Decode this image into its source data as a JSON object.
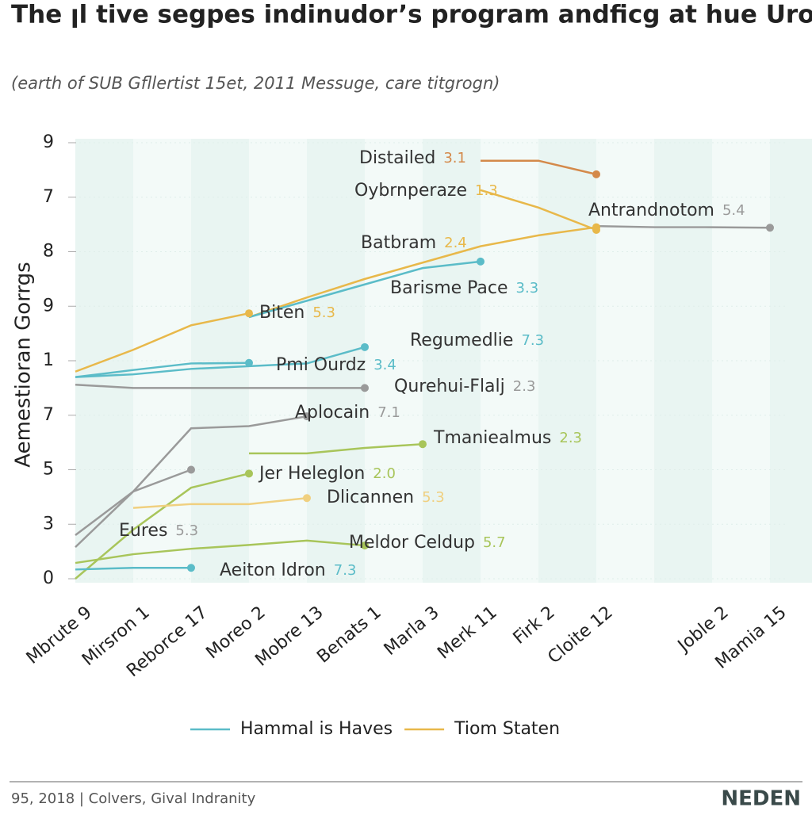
{
  "chart_data": {
    "type": "line",
    "title": "The ꞁl tive segpes indinudor’s program andficg at hue Urogration",
    "subtitle": "(earth of SUB Gfllertist 15et, 2011 Messuge, care titgrogn)",
    "y_label": "Aemestioran Gorrgs",
    "categories": [
      "Mbrute 9",
      "Mirsron 1",
      "Reborce 17",
      "Moreo 2",
      "Mobre 13",
      "Benats 1",
      "Marla 3",
      "Merk 11",
      "Firk 2",
      "Cloite 12",
      null,
      "Joble 2",
      "Mamia 15"
    ],
    "ylim": [
      0,
      8
    ],
    "yticks": [
      0,
      {
        "value": 1,
        "label": "3"
      },
      {
        "value": 2,
        "label": "5"
      },
      {
        "value": 3,
        "label": "7"
      },
      {
        "value": 4,
        "label": "1"
      },
      {
        "value": 5,
        "label": "9"
      },
      {
        "value": 6,
        "label": "8"
      },
      {
        "value": 7,
        "label": "7"
      },
      {
        "value": 8,
        "label": "9"
      }
    ],
    "grid": true,
    "legend": [
      {
        "name": "Hammal is Haves",
        "color": "#5bbcc8"
      },
      {
        "name": "Tiom Staten",
        "color": "#e8b84a"
      }
    ],
    "series": [
      {
        "label": "Distailed",
        "value_label": "3.1",
        "color": "#d4894a",
        "values": [
          null,
          null,
          null,
          null,
          null,
          null,
          null,
          7.67,
          7.67,
          7.42,
          null,
          null,
          null
        ]
      },
      {
        "label": "Oybrnperaze",
        "value_label": "1.3",
        "color": "#e8b84a",
        "values": [
          null,
          null,
          null,
          null,
          null,
          null,
          null,
          7.13,
          6.81,
          6.4,
          null,
          null,
          null
        ]
      },
      {
        "label": "Antrandnotom",
        "value_label": "5.4",
        "color": "#9a9a9a",
        "values": [
          null,
          null,
          null,
          null,
          null,
          null,
          null,
          null,
          null,
          6.47,
          6.45,
          6.45,
          6.44
        ]
      },
      {
        "label": "Batbram",
        "value_label": "2.4",
        "color": "#e8b84a",
        "values": [
          null,
          null,
          null,
          4.8,
          5.16,
          5.5,
          5.8,
          6.1,
          6.3,
          6.45,
          null,
          null,
          null
        ]
      },
      {
        "label": "Barisme Pace",
        "value_label": "3.3",
        "color": "#5bbcc8",
        "values": [
          null,
          null,
          null,
          4.8,
          5.1,
          5.4,
          5.7,
          5.82,
          null,
          null,
          null,
          null,
          null
        ]
      },
      {
        "label": "Biten",
        "value_label": "5.3",
        "color": "#e8b84a",
        "values": [
          3.8,
          4.2,
          4.65,
          4.87,
          null,
          null,
          null,
          null,
          null,
          null,
          null,
          null,
          null
        ]
      },
      {
        "label": "Regumedlie",
        "value_label": "7.3",
        "color": "#5bbcc8",
        "values": [
          3.7,
          3.75,
          3.85,
          3.9,
          3.95,
          4.25,
          null,
          null,
          null,
          null,
          null,
          null,
          null
        ]
      },
      {
        "label": "Pmi Ourdz",
        "value_label": "3.4",
        "color": "#5bbcc8",
        "values": [
          3.7,
          3.83,
          3.95,
          3.96,
          null,
          null,
          null,
          null,
          null,
          null,
          null,
          null,
          null
        ]
      },
      {
        "label": "Qurehui-Flalj",
        "value_label": "2.3",
        "color": "#9a9a9a",
        "values": [
          3.56,
          3.5,
          3.5,
          3.5,
          3.5,
          3.5,
          null,
          null,
          null,
          null,
          null,
          null,
          null
        ]
      },
      {
        "label": "Aplocain",
        "value_label": "7.1",
        "color": "#9a9a9a",
        "values": [
          0.58,
          1.6,
          2.76,
          2.8,
          2.98,
          null,
          null,
          null,
          null,
          null,
          null,
          null,
          null
        ]
      },
      {
        "label": "Tmaniealmus",
        "value_label": "2.3",
        "color": "#a8c55a",
        "values": [
          null,
          null,
          null,
          2.3,
          2.3,
          2.4,
          2.47,
          null,
          null,
          null,
          null,
          null,
          null
        ]
      },
      {
        "label": "Jer Heleglon",
        "value_label": "2.0",
        "color": "#a8c55a",
        "values": [
          0,
          0.9,
          1.67,
          1.93,
          null,
          null,
          null,
          null,
          null,
          null,
          null,
          null,
          null
        ]
      },
      {
        "label": "Dlicannen",
        "value_label": "5.3",
        "color": "#f0d080",
        "values": [
          null,
          1.3,
          1.37,
          1.37,
          1.48,
          null,
          null,
          null,
          null,
          null,
          null,
          null,
          null
        ]
      },
      {
        "label": "Meldor Celdup",
        "value_label": "5.7",
        "color": "#a8c55a",
        "values": [
          0.29,
          0.45,
          0.55,
          0.62,
          0.7,
          0.61,
          null,
          null,
          null,
          null,
          null,
          null,
          null
        ]
      },
      {
        "label": "Aeiton Idron",
        "value_label": "7.3",
        "color": "#5bbcc8",
        "values": [
          0.17,
          0.2,
          0.2,
          null,
          null,
          null,
          null,
          null,
          null,
          null,
          null,
          null,
          null
        ]
      },
      {
        "label": "Eures",
        "value_label": "5.3",
        "color": "#9a9a9a",
        "values": [
          0.8,
          1.6,
          2.0,
          null,
          null,
          null,
          null,
          null,
          null,
          null,
          null,
          null,
          null
        ]
      }
    ],
    "footer": "95, 2018 | Colvers, Gival Indranity",
    "brand": "NEDEN"
  }
}
